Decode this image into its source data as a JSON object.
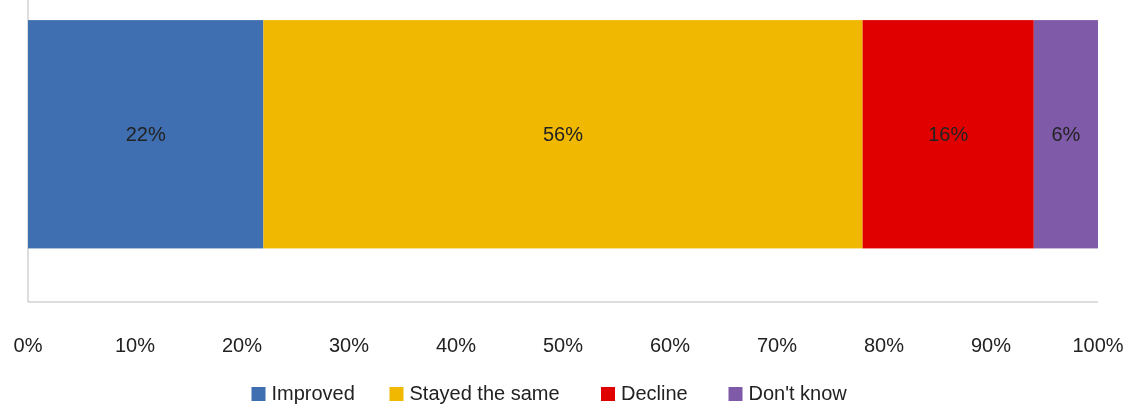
{
  "chart_data": {
    "type": "bar",
    "orientation": "horizontal",
    "stacked": true,
    "categories": [
      null
    ],
    "series": [
      {
        "name": "Improved",
        "color": "#3f6fb0",
        "values": [
          22
        ]
      },
      {
        "name": "Stayed the same",
        "color": "#f0b800",
        "values": [
          56
        ]
      },
      {
        "name": "Decline",
        "color": "#e00000",
        "values": [
          16
        ]
      },
      {
        "name": "Don't know",
        "color": "#7f5aa8",
        "values": [
          6
        ]
      }
    ],
    "xlim": [
      0,
      100
    ],
    "xticks": [
      {
        "value": 0,
        "label": "0%"
      },
      {
        "value": 10,
        "label": "10%"
      },
      {
        "value": 20,
        "label": "20%"
      },
      {
        "value": 30,
        "label": "30%"
      },
      {
        "value": 40,
        "label": "40%"
      },
      {
        "value": 50,
        "label": "50%"
      },
      {
        "value": 60,
        "label": "60%"
      },
      {
        "value": 70,
        "label": "70%"
      },
      {
        "value": 80,
        "label": "80%"
      },
      {
        "value": 90,
        "label": "90%"
      },
      {
        "value": 100,
        "label": "100%"
      }
    ],
    "value_labels": [
      [
        "22%"
      ],
      [
        "56%"
      ],
      [
        "16%"
      ],
      [
        "6%"
      ]
    ],
    "legend": "bottom"
  }
}
